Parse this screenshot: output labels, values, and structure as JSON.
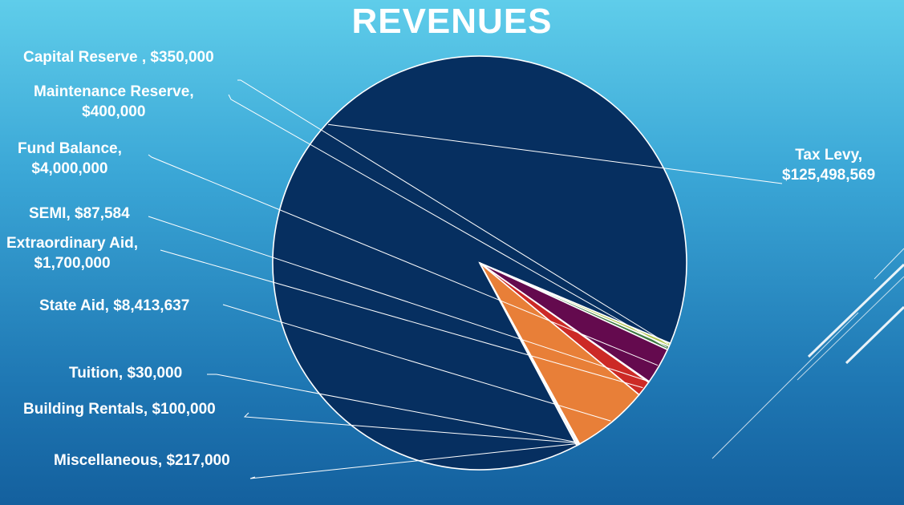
{
  "slide": {
    "title": "REVENUES"
  },
  "chart_data": {
    "type": "pie",
    "title": "REVENUES",
    "categories": [
      "Tax Levy",
      "Capital Reserve",
      "Maintenance Reserve",
      "Fund Balance",
      "SEMI",
      "Extraordinary Aid",
      "State Aid",
      "Tuition",
      "Building Rentals",
      "Miscellaneous"
    ],
    "values": [
      125498569,
      350000,
      400000,
      4000000,
      87584,
      1700000,
      8413637,
      30000,
      100000,
      217000
    ],
    "colors": [
      "#062f60",
      "#b4c64e",
      "#3f7a42",
      "#640a4e",
      "#2f4a7c",
      "#cc2a26",
      "#e87f38",
      "#9bb5d6",
      "#c9c9c9",
      "#e3e3e3"
    ],
    "data_labels": [
      [
        "Tax Levy,",
        "$125,498,569"
      ],
      [
        "Capital Reserve ,  $350,000"
      ],
      [
        "Maintenance Reserve,",
        "$400,000"
      ],
      [
        "Fund Balance,",
        "$4,000,000"
      ],
      [
        "SEMI,  $87,584"
      ],
      [
        "Extraordinary Aid,",
        "$1,700,000"
      ],
      [
        "State Aid,  $8,413,637"
      ],
      [
        "Tuition,  $30,000"
      ],
      [
        "Building Rentals,  $100,000"
      ],
      [
        "Miscellaneous,  $217,000"
      ]
    ]
  }
}
